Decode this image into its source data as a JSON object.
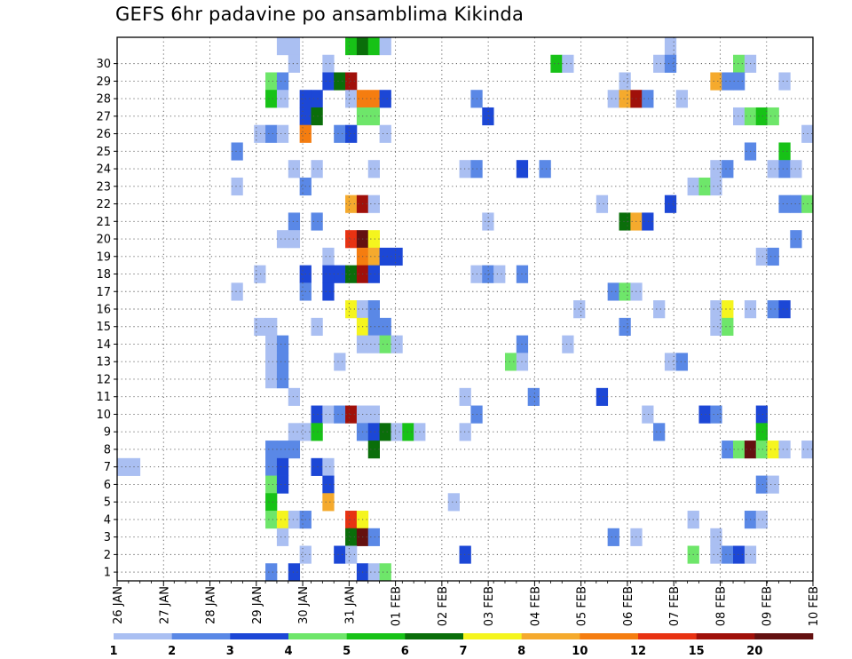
{
  "chart_data": {
    "type": "heatmap",
    "title": "GEFS 6hr padavine po ansamblima Kikinda",
    "xlabel": "",
    "ylabel": "",
    "x_start": "26 JAN",
    "x_step": "6hr",
    "x_ticks": [
      "26 JAN",
      "27 JAN",
      "28 JAN",
      "29 JAN",
      "30 JAN",
      "31 JAN",
      "01 FEB",
      "02 FEB",
      "03 FEB",
      "04 FEB",
      "05 FEB",
      "06 FEB",
      "07 FEB",
      "08 FEB",
      "09 FEB",
      "10 FEB"
    ],
    "y_ticks": [
      "1",
      "2",
      "3",
      "4",
      "5",
      "6",
      "7",
      "8",
      "9",
      "10",
      "11",
      "12",
      "13",
      "14",
      "15",
      "16",
      "17",
      "18",
      "19",
      "20",
      "21",
      "22",
      "23",
      "24",
      "25",
      "26",
      "27",
      "28",
      "29",
      "30"
    ],
    "grid": true,
    "legend_position": "bottom",
    "colorbar": {
      "labels": [
        "1",
        "2",
        "3",
        "4",
        "5",
        "6",
        "7",
        "8",
        "10",
        "12",
        "15",
        "20"
      ],
      "colors": [
        "#aabff2",
        "#5a88e6",
        "#1c47d6",
        "#6ee66a",
        "#17c217",
        "#0a6e0a",
        "#f5f51e",
        "#f5aa2d",
        "#f57d10",
        "#e83212",
        "#a0100a",
        "#641010"
      ]
    },
    "cell_data": [
      [
        30,
        "29 JAN 12",
        0
      ],
      [
        30,
        "29 JAN 18",
        0
      ],
      [
        30,
        "31 JAN 00",
        4
      ],
      [
        30,
        "31 JAN 06",
        5
      ],
      [
        30,
        "31 JAN 12",
        4
      ],
      [
        30,
        "31 JAN 18",
        0
      ],
      [
        30,
        "07 FEB 00",
        0
      ],
      [
        29,
        "29 JAN 18",
        0
      ],
      [
        29,
        "30 JAN 12",
        0
      ],
      [
        29,
        "04 FEB 12",
        4
      ],
      [
        29,
        "04 FEB 18",
        0
      ],
      [
        29,
        "06 FEB 18",
        0
      ],
      [
        29,
        "07 FEB 00",
        1
      ],
      [
        29,
        "08 FEB 12",
        3
      ],
      [
        29,
        "08 FEB 18",
        0
      ],
      [
        28,
        "29 JAN 06",
        3
      ],
      [
        28,
        "29 JAN 12",
        1
      ],
      [
        28,
        "30 JAN 12",
        2
      ],
      [
        28,
        "30 JAN 18",
        5
      ],
      [
        28,
        "31 JAN 00",
        10
      ],
      [
        28,
        "06 FEB 00",
        0
      ],
      [
        28,
        "08 FEB 00",
        7
      ],
      [
        28,
        "08 FEB 06",
        1
      ],
      [
        28,
        "08 FEB 12",
        1
      ],
      [
        28,
        "09 FEB 12",
        0
      ],
      [
        27,
        "29 JAN 06",
        4
      ],
      [
        27,
        "29 JAN 12",
        0
      ],
      [
        27,
        "30 JAN 00",
        2
      ],
      [
        27,
        "30 JAN 06",
        2
      ],
      [
        27,
        "31 JAN 00",
        0
      ],
      [
        27,
        "31 JAN 06",
        8
      ],
      [
        27,
        "31 JAN 12",
        8
      ],
      [
        27,
        "31 JAN 18",
        2
      ],
      [
        27,
        "02 FEB 18",
        1
      ],
      [
        27,
        "05 FEB 18",
        0
      ],
      [
        27,
        "06 FEB 00",
        7
      ],
      [
        27,
        "06 FEB 06",
        10
      ],
      [
        27,
        "06 FEB 12",
        1
      ],
      [
        27,
        "07 FEB 06",
        0
      ],
      [
        26,
        "30 JAN 00",
        2
      ],
      [
        26,
        "30 JAN 06",
        5
      ],
      [
        26,
        "31 JAN 06",
        3
      ],
      [
        26,
        "31 JAN 12",
        3
      ],
      [
        26,
        "03 FEB 00",
        2
      ],
      [
        26,
        "08 FEB 12",
        0
      ],
      [
        26,
        "08 FEB 18",
        3
      ],
      [
        26,
        "09 FEB 00",
        4
      ],
      [
        26,
        "09 FEB 06",
        3
      ],
      [
        25,
        "29 JAN 00",
        0
      ],
      [
        25,
        "29 JAN 06",
        1
      ],
      [
        25,
        "29 JAN 12",
        0
      ],
      [
        25,
        "30 JAN 00",
        8
      ],
      [
        25,
        "30 JAN 18",
        1
      ],
      [
        25,
        "31 JAN 00",
        2
      ],
      [
        25,
        "31 JAN 18",
        0
      ],
      [
        25,
        "10 FEB 00",
        0
      ],
      [
        24,
        "28 JAN 12",
        1
      ],
      [
        24,
        "08 FEB 18",
        1
      ],
      [
        24,
        "09 FEB 12",
        4
      ],
      [
        23,
        "29 JAN 18",
        0
      ],
      [
        23,
        "30 JAN 06",
        0
      ],
      [
        23,
        "31 JAN 12",
        0
      ],
      [
        23,
        "02 FEB 12",
        0
      ],
      [
        23,
        "02 FEB 18",
        1
      ],
      [
        23,
        "03 FEB 18",
        2
      ],
      [
        23,
        "04 FEB 06",
        1
      ],
      [
        23,
        "08 FEB 00",
        0
      ],
      [
        23,
        "08 FEB 06",
        1
      ],
      [
        23,
        "09 FEB 06",
        0
      ],
      [
        23,
        "09 FEB 12",
        1
      ],
      [
        23,
        "09 FEB 18",
        0
      ],
      [
        22,
        "28 JAN 12",
        0
      ],
      [
        22,
        "30 JAN 00",
        1
      ],
      [
        22,
        "07 FEB 12",
        0
      ],
      [
        22,
        "07 FEB 18",
        3
      ],
      [
        22,
        "08 FEB 00",
        0
      ],
      [
        21,
        "31 JAN 00",
        7
      ],
      [
        21,
        "31 JAN 06",
        10
      ],
      [
        21,
        "31 JAN 12",
        0
      ],
      [
        21,
        "05 FEB 12",
        0
      ],
      [
        21,
        "07 FEB 00",
        2
      ],
      [
        21,
        "09 FEB 12",
        1
      ],
      [
        21,
        "09 FEB 18",
        1
      ],
      [
        21,
        "10 FEB 00",
        3
      ],
      [
        20,
        "29 JAN 18",
        1
      ],
      [
        20,
        "30 JAN 06",
        1
      ],
      [
        20,
        "03 FEB 00",
        0
      ],
      [
        20,
        "06 FEB 00",
        5
      ],
      [
        20,
        "06 FEB 06",
        7
      ],
      [
        20,
        "06 FEB 12",
        2
      ],
      [
        19,
        "29 JAN 12",
        0
      ],
      [
        19,
        "29 JAN 18",
        0
      ],
      [
        19,
        "31 JAN 00",
        9
      ],
      [
        19,
        "31 JAN 06",
        11
      ],
      [
        19,
        "31 JAN 12",
        6
      ],
      [
        19,
        "09 FEB 18",
        1
      ],
      [
        18,
        "30 JAN 12",
        0
      ],
      [
        18,
        "31 JAN 06",
        8
      ],
      [
        18,
        "31 JAN 12",
        7
      ],
      [
        18,
        "31 JAN 18",
        2
      ],
      [
        18,
        "01 FEB 00",
        2
      ],
      [
        18,
        "09 FEB 00",
        0
      ],
      [
        18,
        "09 FEB 06",
        1
      ],
      [
        17,
        "29 JAN 00",
        0
      ],
      [
        17,
        "30 JAN 00",
        2
      ],
      [
        17,
        "30 JAN 12",
        2
      ],
      [
        17,
        "30 JAN 18",
        2
      ],
      [
        17,
        "31 JAN 00",
        5
      ],
      [
        17,
        "31 JAN 06",
        10
      ],
      [
        17,
        "31 JAN 12",
        2
      ],
      [
        17,
        "02 FEB 18",
        0
      ],
      [
        17,
        "03 FEB 00",
        1
      ],
      [
        17,
        "03 FEB 06",
        0
      ],
      [
        17,
        "03 FEB 18",
        1
      ],
      [
        16,
        "28 JAN 12",
        0
      ],
      [
        16,
        "30 JAN 00",
        1
      ],
      [
        16,
        "30 JAN 12",
        2
      ],
      [
        16,
        "05 FEB 18",
        1
      ],
      [
        16,
        "06 FEB 00",
        3
      ],
      [
        16,
        "06 FEB 06",
        0
      ],
      [
        15,
        "31 JAN 00",
        6
      ],
      [
        15,
        "31 JAN 06",
        0
      ],
      [
        15,
        "31 JAN 12",
        1
      ],
      [
        15,
        "05 FEB 00",
        0
      ],
      [
        15,
        "06 FEB 18",
        0
      ],
      [
        15,
        "08 FEB 00",
        0
      ],
      [
        15,
        "08 FEB 06",
        6
      ],
      [
        15,
        "08 FEB 18",
        0
      ],
      [
        15,
        "09 FEB 06",
        1
      ],
      [
        15,
        "09 FEB 12",
        2
      ],
      [
        14,
        "29 JAN 00",
        0
      ],
      [
        14,
        "29 JAN 06",
        0
      ],
      [
        14,
        "30 JAN 06",
        0
      ],
      [
        14,
        "31 JAN 06",
        6
      ],
      [
        14,
        "31 JAN 12",
        1
      ],
      [
        14,
        "31 JAN 18",
        1
      ],
      [
        14,
        "06 FEB 00",
        1
      ],
      [
        14,
        "08 FEB 00",
        0
      ],
      [
        14,
        "08 FEB 06",
        3
      ],
      [
        13,
        "29 JAN 06",
        0
      ],
      [
        13,
        "29 JAN 12",
        1
      ],
      [
        13,
        "31 JAN 06",
        0
      ],
      [
        13,
        "31 JAN 12",
        0
      ],
      [
        13,
        "31 JAN 18",
        3
      ],
      [
        13,
        "01 FEB 00",
        0
      ],
      [
        13,
        "03 FEB 18",
        1
      ],
      [
        13,
        "04 FEB 18",
        0
      ],
      [
        12,
        "29 JAN 06",
        0
      ],
      [
        12,
        "29 JAN 12",
        1
      ],
      [
        12,
        "30 JAN 18",
        0
      ],
      [
        12,
        "03 FEB 12",
        3
      ],
      [
        12,
        "03 FEB 18",
        0
      ],
      [
        12,
        "07 FEB 00",
        0
      ],
      [
        12,
        "07 FEB 06",
        1
      ],
      [
        11,
        "29 JAN 06",
        0
      ],
      [
        11,
        "29 JAN 12",
        1
      ],
      [
        10,
        "29 JAN 18",
        0
      ],
      [
        10,
        "02 FEB 12",
        0
      ],
      [
        10,
        "04 FEB 00",
        1
      ],
      [
        10,
        "05 FEB 12",
        2
      ],
      [
        9,
        "30 JAN 06",
        2
      ],
      [
        9,
        "30 JAN 12",
        0
      ],
      [
        9,
        "30 JAN 18",
        1
      ],
      [
        9,
        "31 JAN 00",
        10
      ],
      [
        9,
        "31 JAN 06",
        0
      ],
      [
        9,
        "31 JAN 12",
        0
      ],
      [
        9,
        "02 FEB 18",
        1
      ],
      [
        9,
        "06 FEB 12",
        0
      ],
      [
        9,
        "07 FEB 18",
        2
      ],
      [
        9,
        "08 FEB 00",
        1
      ],
      [
        9,
        "09 FEB 00",
        2
      ],
      [
        8,
        "29 JAN 18",
        0
      ],
      [
        8,
        "30 JAN 00",
        0
      ],
      [
        8,
        "30 JAN 06",
        4
      ],
      [
        8,
        "31 JAN 06",
        1
      ],
      [
        8,
        "31 JAN 12",
        2
      ],
      [
        8,
        "31 JAN 18",
        5
      ],
      [
        8,
        "01 FEB 00",
        0
      ],
      [
        8,
        "01 FEB 06",
        4
      ],
      [
        8,
        "01 FEB 12",
        0
      ],
      [
        8,
        "02 FEB 12",
        0
      ],
      [
        8,
        "06 FEB 18",
        1
      ],
      [
        8,
        "09 FEB 00",
        4
      ],
      [
        7,
        "29 JAN 06",
        1
      ],
      [
        7,
        "29 JAN 12",
        1
      ],
      [
        7,
        "29 JAN 18",
        1
      ],
      [
        7,
        "31 JAN 12",
        5
      ],
      [
        7,
        "08 FEB 06",
        1
      ],
      [
        7,
        "08 FEB 12",
        3
      ],
      [
        7,
        "08 FEB 18",
        11
      ],
      [
        7,
        "09 FEB 00",
        3
      ],
      [
        7,
        "09 FEB 06",
        6
      ],
      [
        7,
        "09 FEB 12",
        0
      ],
      [
        7,
        "10 FEB 00",
        0
      ],
      [
        6,
        "26 JAN 00",
        0
      ],
      [
        6,
        "26 JAN 06",
        0
      ],
      [
        6,
        "29 JAN 06",
        1
      ],
      [
        6,
        "29 JAN 12",
        2
      ],
      [
        6,
        "30 JAN 06",
        2
      ],
      [
        6,
        "30 JAN 12",
        0
      ],
      [
        5,
        "29 JAN 06",
        3
      ],
      [
        5,
        "29 JAN 12",
        2
      ],
      [
        5,
        "30 JAN 12",
        2
      ],
      [
        5,
        "09 FEB 00",
        1
      ],
      [
        5,
        "09 FEB 06",
        0
      ],
      [
        4,
        "29 JAN 06",
        4
      ],
      [
        4,
        "30 JAN 12",
        7
      ],
      [
        4,
        "02 FEB 06",
        0
      ],
      [
        3,
        "29 JAN 06",
        3
      ],
      [
        3,
        "29 JAN 12",
        6
      ],
      [
        3,
        "29 JAN 18",
        0
      ],
      [
        3,
        "30 JAN 00",
        1
      ],
      [
        3,
        "31 JAN 00",
        9
      ],
      [
        3,
        "31 JAN 06",
        6
      ],
      [
        3,
        "07 FEB 12",
        0
      ],
      [
        3,
        "08 FEB 18",
        1
      ],
      [
        3,
        "09 FEB 00",
        0
      ],
      [
        2,
        "29 JAN 12",
        0
      ],
      [
        2,
        "31 JAN 00",
        5
      ],
      [
        2,
        "31 JAN 06",
        11
      ],
      [
        2,
        "31 JAN 12",
        1
      ],
      [
        2,
        "05 FEB 18",
        1
      ],
      [
        2,
        "06 FEB 06",
        0
      ],
      [
        2,
        "08 FEB 00",
        0
      ],
      [
        1,
        "30 JAN 00",
        0
      ],
      [
        1,
        "30 JAN 18",
        2
      ],
      [
        1,
        "31 JAN 00",
        0
      ],
      [
        1,
        "02 FEB 12",
        2
      ],
      [
        1,
        "07 FEB 12",
        3
      ],
      [
        1,
        "08 FEB 00",
        0
      ],
      [
        1,
        "08 FEB 06",
        1
      ],
      [
        1,
        "08 FEB 12",
        2
      ],
      [
        1,
        "08 FEB 18",
        0
      ],
      [
        0,
        "29 JAN 06",
        1
      ],
      [
        0,
        "29 JAN 18",
        2
      ],
      [
        0,
        "31 JAN 06",
        2
      ],
      [
        0,
        "31 JAN 12",
        0
      ],
      [
        0,
        "31 JAN 18",
        3
      ]
    ]
  }
}
